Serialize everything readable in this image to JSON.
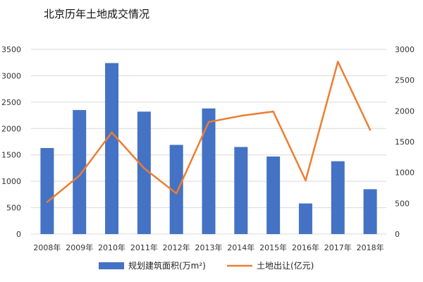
{
  "chart_data": {
    "type": "bar-line-combo",
    "title": "北京历年土地成交情况",
    "categories": [
      "2008年",
      "2009年",
      "2010年",
      "2011年",
      "2012年",
      "2013年",
      "2014年",
      "2015年",
      "2016年",
      "2017年",
      "2018年"
    ],
    "series": [
      {
        "name": "规划建筑面积(万m²)",
        "type": "bar",
        "axis": "left",
        "color": "#4472C4",
        "values": [
          1630,
          2350,
          3240,
          2320,
          1690,
          2380,
          1650,
          1470,
          580,
          1380,
          850
        ]
      },
      {
        "name": "土地出让(亿元)",
        "type": "line",
        "axis": "right",
        "color": "#ED7D31",
        "values": [
          520,
          950,
          1650,
          1070,
          660,
          1820,
          1920,
          1990,
          870,
          2800,
          1690
        ]
      }
    ],
    "y_left": {
      "ylim": [
        0,
        3500
      ],
      "ticks": [
        "0",
        "500",
        "1000",
        "1500",
        "2000",
        "2500",
        "3000",
        "3500"
      ]
    },
    "y_right": {
      "ylim": [
        0,
        3000
      ],
      "ticks": [
        "0",
        "500",
        "1000",
        "1500",
        "2000",
        "2500",
        "3000"
      ]
    },
    "grid": true,
    "legend_position": "bottom"
  }
}
